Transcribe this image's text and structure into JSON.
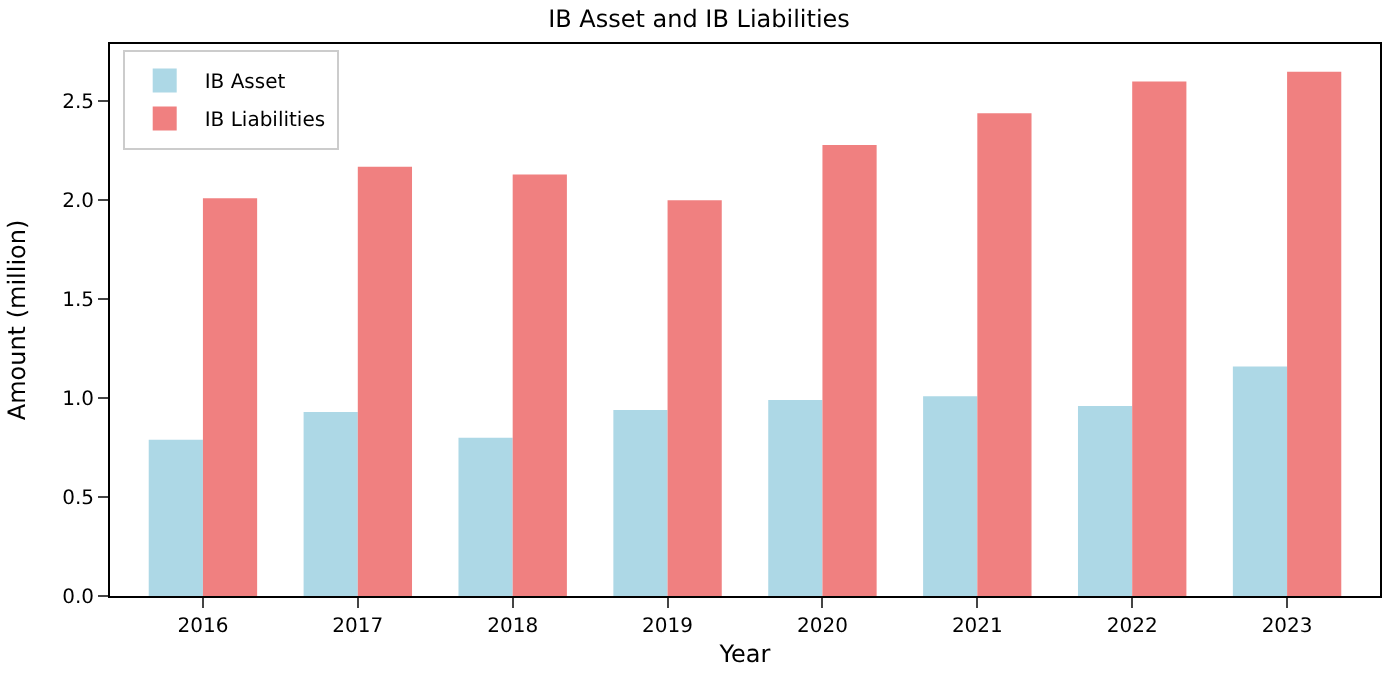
{
  "chart_data": {
    "type": "bar",
    "title": "IB Asset and IB Liabilities",
    "xlabel": "Year",
    "ylabel": "Amount (million)",
    "categories": [
      "2016",
      "2017",
      "2018",
      "2019",
      "2020",
      "2021",
      "2022",
      "2023"
    ],
    "series": [
      {
        "name": "IB Asset",
        "color": "#add8e6",
        "values": [
          0.79,
          0.93,
          0.8,
          0.94,
          0.99,
          1.01,
          0.96,
          1.16
        ]
      },
      {
        "name": "IB Liabilities",
        "color": "#f08080",
        "values": [
          2.01,
          2.17,
          2.13,
          2.0,
          2.28,
          2.44,
          2.6,
          2.65
        ]
      }
    ],
    "ylim": [
      0,
      2.79
    ],
    "yticks": [
      {
        "value": 0,
        "label": "0.0"
      },
      0.5,
      {
        "value": 1,
        "label": "1.0"
      },
      1.5,
      {
        "value": 2,
        "label": "2.0"
      },
      2.5
    ],
    "legend": "top left"
  }
}
